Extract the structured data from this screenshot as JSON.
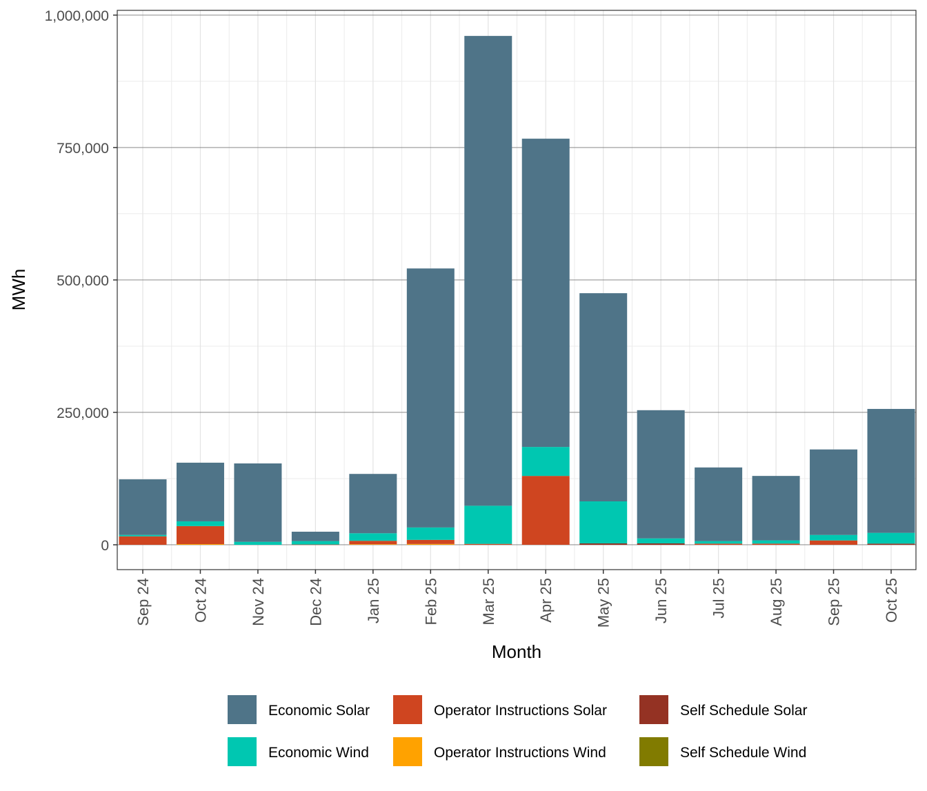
{
  "chart_data": {
    "type": "bar",
    "stacked": true,
    "xlabel": "Month",
    "ylabel": "MWh",
    "ylim": [
      -46900,
      1009000
    ],
    "yticks": [
      0,
      250000,
      500000,
      750000,
      1000000
    ],
    "ytick_labels": [
      "0",
      "250,000",
      "500,000",
      "750,000",
      "1,000,000"
    ],
    "grid": true,
    "legend_position": "bottom",
    "categories": [
      "Sep 24",
      "Oct 24",
      "Nov 24",
      "Dec 24",
      "Jan 25",
      "Feb 25",
      "Mar 25",
      "Apr 25",
      "May 25",
      "Jun 25",
      "Jul 25",
      "Aug 25",
      "Sep 25",
      "Oct 25"
    ],
    "series": [
      {
        "name": "Self Schedule Wind",
        "color": "#817B00",
        "values": [
          0,
          0,
          0,
          0,
          0,
          0,
          0,
          0,
          0,
          0,
          0,
          0,
          0,
          0
        ]
      },
      {
        "name": "Self Schedule Solar",
        "color": "#943223",
        "values": [
          0,
          0,
          0,
          0,
          0,
          0,
          0,
          0,
          2600,
          2600,
          0,
          0,
          0,
          2200
        ]
      },
      {
        "name": "Operator Instructions Wind",
        "color": "#FFA200",
        "values": [
          0,
          1300,
          0,
          0,
          1000,
          1500,
          0,
          0,
          0,
          0,
          0,
          0,
          0,
          0
        ]
      },
      {
        "name": "Operator Instructions Solar",
        "color": "#CF4520",
        "values": [
          16000,
          34000,
          0,
          500,
          6500,
          7800,
          1700,
          130000,
          0,
          0,
          2200,
          2200,
          8200,
          0
        ]
      },
      {
        "name": "Economic Wind",
        "color": "#00C7B1",
        "values": [
          2600,
          9000,
          5600,
          6500,
          14300,
          23400,
          72000,
          54700,
          79400,
          9500,
          4800,
          6100,
          10400,
          20400
        ]
      },
      {
        "name": "Economic Solar",
        "color": "#4F7488",
        "values": [
          105000,
          110700,
          148000,
          17700,
          112000,
          489000,
          887000,
          582000,
          393000,
          242000,
          139000,
          121700,
          161400,
          233900
        ]
      }
    ],
    "legend_order": [
      "Economic Solar",
      "Operator Instructions Solar",
      "Self Schedule Solar",
      "Economic Wind",
      "Operator Instructions Wind",
      "Self Schedule Wind"
    ]
  }
}
